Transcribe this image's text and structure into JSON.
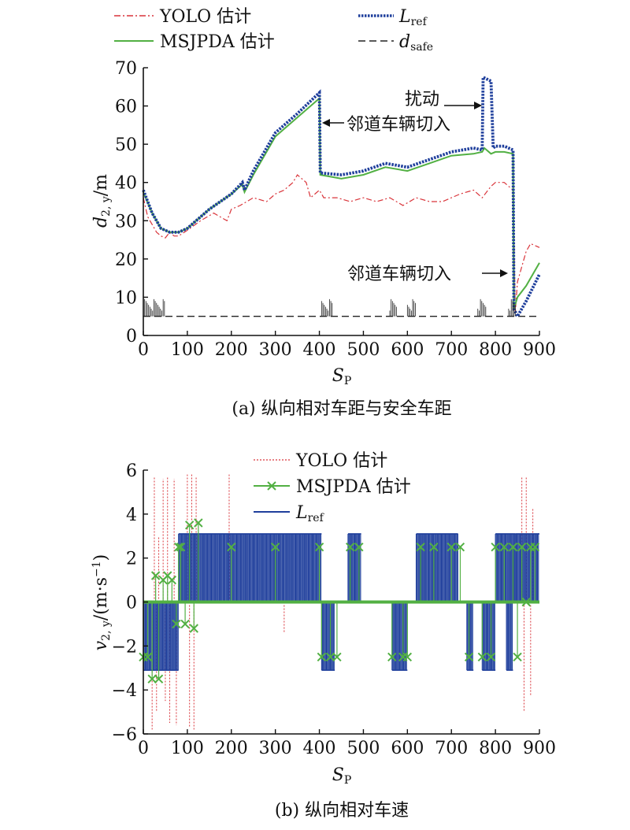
{
  "chart_data": [
    {
      "type": "line",
      "caption": "(a) 纵向相对车距与安全车距",
      "xlabel_main": "S",
      "xlabel_sub": "P",
      "ylabel_main": "d",
      "ylabel_sub": "2, y",
      "ylabel_unit": "/m",
      "xlim": [
        0,
        900
      ],
      "ylim": [
        0,
        70
      ],
      "xticks": [
        "0",
        "100",
        "200",
        "300",
        "400",
        "500",
        "600",
        "700",
        "800",
        "900"
      ],
      "yticks": [
        "0",
        "10",
        "20",
        "30",
        "40",
        "50",
        "60",
        "70"
      ],
      "legend": {
        "yolo": "YOLO 估计",
        "msjpda": "MSJPDA 估计",
        "lref_main": "L",
        "lref_sub": "ref",
        "dsafe_main": "d",
        "dsafe_sub": "safe"
      },
      "annotations": {
        "disturb": "扰动",
        "cutin_1": "邻道车辆切入",
        "cutin_2": "邻道车辆切入"
      },
      "colors": {
        "yolo": "#d9343a",
        "msjpda": "#52b043",
        "lref": "#1f3f9c",
        "dsafe": "#222222"
      },
      "series": [
        {
          "key": "lref",
          "x": [
            0,
            20,
            40,
            60,
            80,
            100,
            150,
            200,
            225,
            230,
            250,
            300,
            350,
            400,
            402,
            450,
            500,
            550,
            600,
            650,
            700,
            750,
            770,
            772,
            790,
            795,
            800,
            820,
            840,
            842,
            850,
            870,
            900
          ],
          "y": [
            38,
            32,
            28,
            27,
            27,
            28,
            33,
            37,
            40,
            38,
            43,
            53,
            58,
            63.5,
            42.5,
            42,
            43,
            45,
            44,
            46,
            48,
            49,
            48.5,
            67.5,
            66.5,
            49,
            49.5,
            49.5,
            48.5,
            7,
            5,
            9,
            16
          ]
        },
        {
          "key": "msjpda",
          "x": [
            0,
            20,
            40,
            60,
            80,
            100,
            150,
            200,
            225,
            230,
            250,
            300,
            350,
            400,
            402,
            450,
            500,
            550,
            600,
            650,
            700,
            750,
            770,
            775,
            790,
            800,
            820,
            840,
            842,
            850,
            870,
            900
          ],
          "y": [
            37.5,
            32,
            28,
            27,
            27,
            28,
            33,
            37,
            39.5,
            37.5,
            42,
            52,
            57,
            62,
            42,
            41,
            42,
            44,
            43,
            45,
            47,
            47.5,
            48,
            49,
            47.5,
            48,
            48,
            47.5,
            7,
            10,
            13,
            19
          ]
        },
        {
          "key": "yolo",
          "x": [
            0,
            10,
            20,
            30,
            40,
            50,
            60,
            70,
            80,
            100,
            130,
            160,
            190,
            200,
            220,
            250,
            280,
            300,
            320,
            340,
            350,
            370,
            380,
            400,
            410,
            440,
            470,
            500,
            530,
            560,
            590,
            620,
            650,
            680,
            700,
            720,
            750,
            770,
            790,
            800,
            820,
            840,
            845,
            850,
            860,
            870,
            880,
            900
          ],
          "y": [
            36,
            31,
            29,
            27,
            26,
            25.5,
            27,
            26,
            26,
            27.5,
            30,
            32,
            30,
            33,
            34,
            36,
            35,
            37,
            38,
            40,
            42,
            40,
            36,
            38,
            36,
            36,
            35,
            36,
            35,
            36,
            34,
            36,
            35,
            35,
            36,
            37,
            38,
            36,
            39,
            40,
            40,
            38,
            6,
            14,
            18,
            22,
            24,
            23
          ]
        },
        {
          "key": "dsafe",
          "x": [
            0,
            900
          ],
          "y": [
            5,
            5
          ]
        }
      ]
    },
    {
      "type": "line",
      "caption": "(b) 纵向相对车速",
      "xlabel_main": "S",
      "xlabel_sub": "P",
      "ylabel_main": "v",
      "ylabel_sub": "2, y",
      "ylabel_unit": "/(m·s",
      "ylabel_exp": "−1",
      "ylabel_close": ")",
      "xlim": [
        0,
        900
      ],
      "ylim": [
        -6,
        6
      ],
      "xticks": [
        "0",
        "100",
        "200",
        "300",
        "400",
        "500",
        "600",
        "700",
        "800",
        "900"
      ],
      "yticks": [
        "−6",
        "−4",
        "−2",
        "0",
        "2",
        "4",
        "6"
      ],
      "legend": {
        "yolo": "YOLO 估计",
        "msjpda": "MSJPDA 估计",
        "lref_main": "L",
        "lref_sub": "ref"
      },
      "colors": {
        "yolo": "#d9343a",
        "msjpda": "#52b043",
        "lref": "#1f3f9c"
      },
      "lref_high_segments": [
        [
          80,
          405
        ],
        [
          465,
          495
        ],
        [
          620,
          715
        ],
        [
          800,
          845
        ],
        [
          845,
          900
        ]
      ],
      "lref_low_segments": [
        [
          0,
          80
        ],
        [
          405,
          435
        ],
        [
          565,
          600
        ],
        [
          735,
          750
        ],
        [
          770,
          800
        ],
        [
          825,
          840
        ]
      ],
      "lref_high_value": 3.1,
      "lref_low_value": -3.1,
      "msjpda_markers": {
        "x": [
          0,
          10,
          20,
          28,
          35,
          45,
          55,
          65,
          75,
          85,
          95,
          105,
          115,
          125,
          80,
          200,
          300,
          400,
          405,
          425,
          440,
          470,
          490,
          565,
          590,
          600,
          630,
          660,
          700,
          720,
          740,
          770,
          790,
          800,
          820,
          840,
          850,
          860,
          870,
          880,
          890
        ],
        "y": [
          -2.5,
          -2.5,
          -3.5,
          1.2,
          -3.5,
          1,
          1.2,
          1,
          -1,
          2.5,
          -1,
          3.5,
          -1.2,
          3.6,
          2.5,
          2.5,
          2.5,
          2.5,
          -2.5,
          -2.5,
          -2.5,
          2.5,
          2.5,
          -2.5,
          -2.5,
          -2.5,
          2.5,
          2.5,
          2.5,
          2.5,
          -2.5,
          -2.5,
          -2.5,
          2.5,
          2.5,
          2.5,
          -2.5,
          2.5,
          0,
          2.5,
          2.5
        ]
      },
      "yolo_spikes": {
        "x": [
          20,
          25,
          30,
          35,
          45,
          50,
          55,
          60,
          70,
          75,
          100,
          105,
          110,
          115,
          120,
          195,
          320,
          860,
          865,
          870,
          880,
          885
        ],
        "y": [
          -5.8,
          5.7,
          -5,
          3,
          5.6,
          -4.5,
          5.7,
          -5.5,
          5.6,
          -5.6,
          5.8,
          -5.7,
          5.8,
          -5.8,
          5.7,
          5.8,
          -1.4,
          5.7,
          -5,
          5.7,
          -4.3,
          4.3
        ]
      }
    }
  ]
}
